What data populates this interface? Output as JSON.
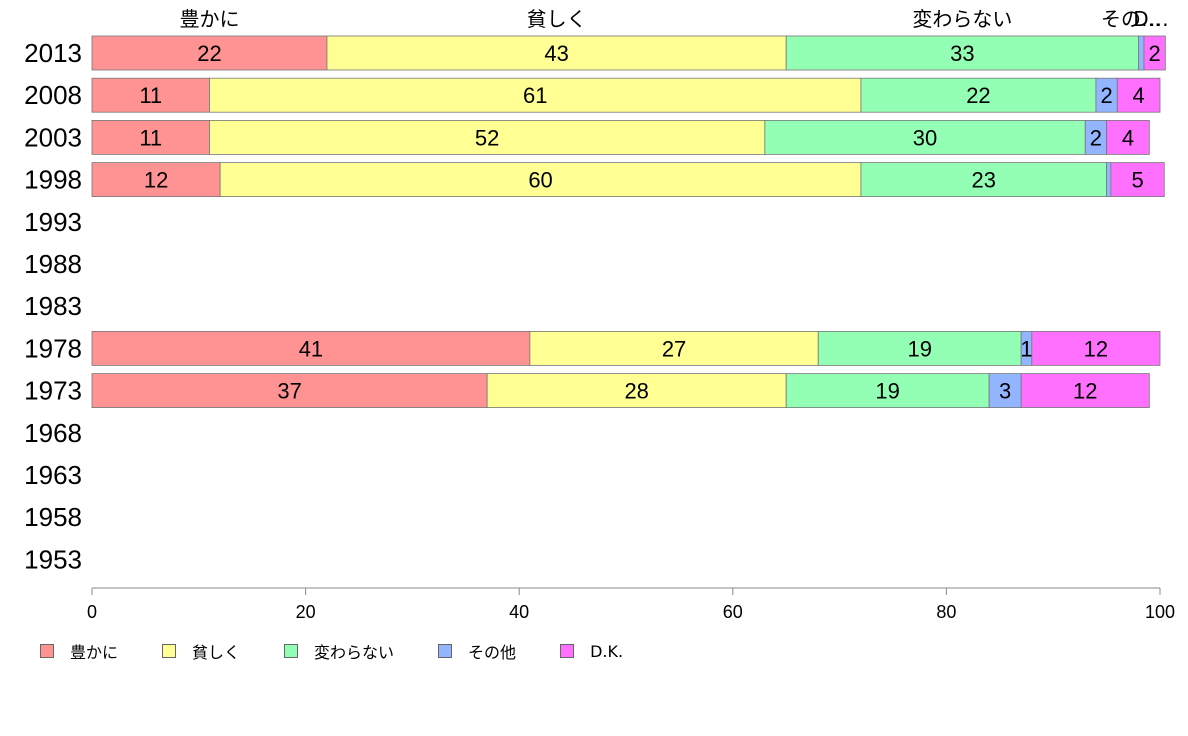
{
  "chart_data": {
    "type": "bar",
    "orientation": "horizontal",
    "stacked": true,
    "categories": [
      "2013",
      "2008",
      "2003",
      "1998",
      "1993",
      "1988",
      "1983",
      "1978",
      "1973",
      "1968",
      "1963",
      "1958",
      "1953"
    ],
    "series": [
      {
        "name": "豊かに",
        "color": "#ff9393",
        "values": [
          22,
          11,
          11,
          12,
          null,
          null,
          null,
          41,
          37,
          null,
          null,
          null,
          null
        ]
      },
      {
        "name": "貧しく",
        "color": "#ffff93",
        "values": [
          43,
          61,
          52,
          60,
          null,
          null,
          null,
          27,
          28,
          null,
          null,
          null,
          null
        ]
      },
      {
        "name": "変わらない",
        "color": "#93ffb4",
        "values": [
          33,
          22,
          30,
          23,
          null,
          null,
          null,
          19,
          19,
          null,
          null,
          null,
          null
        ]
      },
      {
        "name": "その他",
        "color": "#93b4ff",
        "values": [
          0.5,
          2,
          2,
          0.4,
          null,
          null,
          null,
          1,
          3,
          null,
          null,
          null,
          null
        ]
      },
      {
        "name": "D.K.",
        "color": "#ff70ff",
        "values": [
          2,
          4,
          4,
          5,
          null,
          null,
          null,
          12,
          12,
          null,
          null,
          null,
          null
        ]
      }
    ],
    "value_labels": [
      [
        "22",
        "43",
        "33",
        "",
        "2"
      ],
      [
        "11",
        "61",
        "22",
        "2",
        "4"
      ],
      [
        "11",
        "52",
        "30",
        "2",
        "4"
      ],
      [
        "12",
        "60",
        "23",
        "",
        "5"
      ],
      [
        "",
        "",
        "",
        "",
        ""
      ],
      [
        "",
        "",
        "",
        "",
        ""
      ],
      [
        "",
        "",
        "",
        "",
        ""
      ],
      [
        "41",
        "27",
        "19",
        "1",
        "12"
      ],
      [
        "37",
        "28",
        "19",
        "3",
        "12"
      ],
      [
        "",
        "",
        "",
        "",
        ""
      ],
      [
        "",
        "",
        "",
        "",
        ""
      ],
      [
        "",
        "",
        "",
        "",
        ""
      ],
      [
        "",
        "",
        "",
        "",
        ""
      ]
    ],
    "top_labels": [
      "豊かに",
      "貧しく",
      "変わらない",
      "その…",
      "D…"
    ],
    "xlim": [
      0,
      100
    ],
    "xticks": [
      "0",
      "20",
      "40",
      "60",
      "80",
      "100"
    ],
    "grid": false,
    "legend_position": "bottom-left"
  }
}
